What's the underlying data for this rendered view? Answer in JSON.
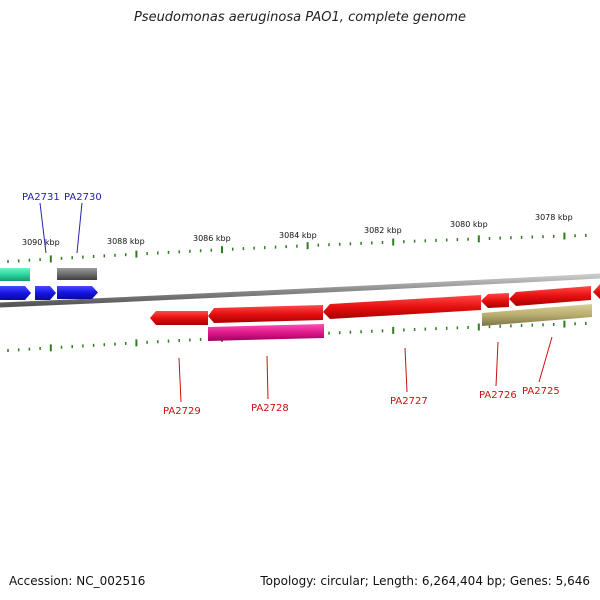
{
  "header": {
    "title": "Pseudomonas aeruginosa PAO1, complete genome"
  },
  "footer": {
    "accession": "Accession: NC_002516",
    "summary": "Topology: circular; Length: 6,264,404 bp; Genes: 5,646"
  },
  "scale": {
    "labels": [
      "3090 kbp",
      "3088 kbp",
      "3086 kbp",
      "3084 kbp",
      "3082 kbp",
      "3080 kbp",
      "3078 kbp"
    ]
  },
  "genes": {
    "upper": [
      {
        "name": "PA2731",
        "color": "#1515e6"
      },
      {
        "name": "PA2730",
        "color": "#1515e6"
      }
    ],
    "lower": [
      {
        "name": "PA2729",
        "color": "#e61010"
      },
      {
        "name": "PA2728",
        "color": "#e61010"
      },
      {
        "name": "PA2727",
        "color": "#e61010"
      },
      {
        "name": "PA2726",
        "color": "#e61010"
      },
      {
        "name": "PA2725",
        "color": "#e61010"
      }
    ]
  },
  "colors": {
    "backbone": "#8a8a8a",
    "tick": "#2e7d1f",
    "forward_gene": "#1515e6",
    "reverse_gene": "#e61010",
    "magenta_feature": "#e0198c",
    "olive_feature": "#b8ad70",
    "teal_feature": "#2ed6a0",
    "gray_feature": "#6e6e6e"
  }
}
